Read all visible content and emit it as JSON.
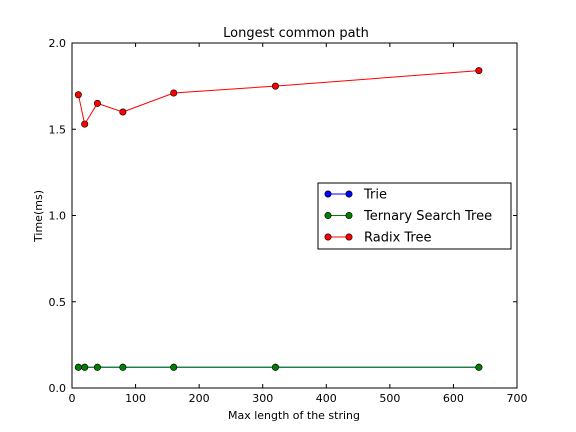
{
  "chart_data": {
    "type": "line",
    "title": "Longest common path",
    "xlabel": "Max length of the string",
    "ylabel": "Time(ms)",
    "xlim": [
      0,
      700
    ],
    "ylim": [
      0.0,
      2.0
    ],
    "xticks": [
      0,
      100,
      200,
      300,
      400,
      500,
      600,
      700
    ],
    "yticks": [
      "0.0",
      "0.5",
      "1.0",
      "1.5",
      "2.0"
    ],
    "grid": false,
    "legend_position": "center-right",
    "series": [
      {
        "name": "Trie",
        "color": "#0000ff",
        "x": [
          10,
          20,
          40,
          80,
          160,
          320,
          640
        ],
        "y": [
          0.12,
          0.12,
          0.12,
          0.12,
          0.12,
          0.12,
          0.12
        ]
      },
      {
        "name": "Ternary Search Tree",
        "color": "#008000",
        "x": [
          10,
          20,
          40,
          80,
          160,
          320,
          640
        ],
        "y": [
          0.12,
          0.12,
          0.12,
          0.12,
          0.12,
          0.12,
          0.12
        ]
      },
      {
        "name": "Radix Tree",
        "color": "#ff0000",
        "x": [
          10,
          20,
          40,
          80,
          160,
          320,
          640
        ],
        "y": [
          1.7,
          1.53,
          1.65,
          1.6,
          1.71,
          1.75,
          1.84
        ]
      }
    ]
  }
}
